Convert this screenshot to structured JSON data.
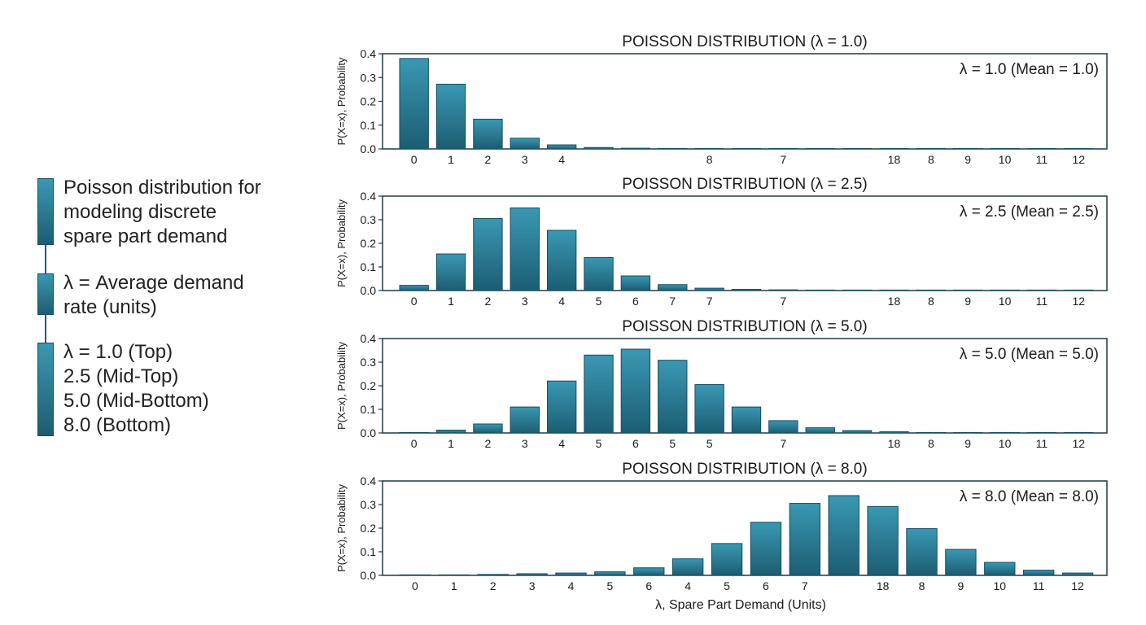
{
  "legend": {
    "items": [
      {
        "lines": [
          "Poisson distribution for",
          "modeling discrete",
          "spare part demand"
        ]
      },
      {
        "lines": [
          "λ = Average demand",
          "rate (units)"
        ]
      },
      {
        "lines": [
          "λ = 1.0 (Top)",
          "2.5 (Mid-Top)",
          "5.0 (Mid-Bottom)",
          "8.0 (Bottom)"
        ]
      }
    ]
  },
  "colors": {
    "bar_top": "#3a98b3",
    "bar_bottom": "#1c5d72",
    "bar_stroke": "#174d60",
    "axis": "#1f3a46"
  },
  "chart_data": [
    {
      "type": "bar",
      "title": "POISSON DISTRIBUTION (λ = 1.0)",
      "ylabel": "P(X=x), Probability",
      "xlabel": "",
      "annotation": "λ = 1.0 (Mean = 1.0)",
      "ylim": [
        0,
        0.4
      ],
      "yticks": [
        "0.0",
        "0.1",
        "0.2",
        "0.3",
        "0.4"
      ],
      "categories": [
        "0",
        "1",
        "2",
        "3",
        "4",
        "",
        "",
        "",
        "8",
        "",
        "7",
        "",
        "",
        "18",
        "8",
        "9",
        "10",
        "11",
        "12"
      ],
      "values": [
        0.38,
        0.272,
        0.125,
        0.045,
        0.017,
        0.006,
        0.003,
        0.002,
        0.0015,
        0.001,
        0.0008,
        0.0006,
        0.0005,
        0.0004,
        0.0003,
        0.0002,
        0.0002,
        0.0001,
        0.0001
      ],
      "grid": false
    },
    {
      "type": "bar",
      "title": "POISSON DISTRIBUTION (λ = 2.5)",
      "ylabel": "P(X=x), Probability",
      "xlabel": "",
      "annotation": "λ = 2.5 (Mean = 2.5)",
      "ylim": [
        0,
        0.4
      ],
      "yticks": [
        "0.0",
        "0.1",
        "0.2",
        "0.3",
        "0.4"
      ],
      "categories": [
        "0",
        "1",
        "2",
        "3",
        "4",
        "5",
        "6",
        "7",
        "7",
        "",
        "7",
        "",
        "",
        "18",
        "8",
        "9",
        "10",
        "11",
        "12"
      ],
      "values": [
        0.022,
        0.155,
        0.305,
        0.35,
        0.255,
        0.14,
        0.062,
        0.025,
        0.01,
        0.005,
        0.003,
        0.002,
        0.001,
        0.0008,
        0.0006,
        0.0005,
        0.0004,
        0.0003,
        0.0002
      ],
      "grid": false
    },
    {
      "type": "bar",
      "title": "POISSON DISTRIBUTION (λ = 5.0)",
      "ylabel": "P(X=x), Probability",
      "xlabel": "",
      "annotation": "λ = 5.0 (Mean = 5.0)",
      "ylim": [
        0,
        0.4
      ],
      "yticks": [
        "0.0",
        "0.1",
        "0.2",
        "0.3",
        "0.4"
      ],
      "categories": [
        "0",
        "1",
        "2",
        "3",
        "4",
        "5",
        "6",
        "5",
        "5",
        "",
        "7",
        "",
        "",
        "18",
        "8",
        "9",
        "10",
        "11",
        "12"
      ],
      "values": [
        0.0,
        0.012,
        0.038,
        0.11,
        0.22,
        0.33,
        0.355,
        0.308,
        0.205,
        0.11,
        0.052,
        0.022,
        0.01,
        0.005,
        0.002,
        0.001,
        0.0006,
        0.0004,
        0.0002
      ],
      "grid": false
    },
    {
      "type": "bar",
      "title": "POISSON DISTRIBUTION (λ = 8.0)",
      "ylabel": "P(X=x), Probability",
      "xlabel": "λ, Spare Part Demand (Units)",
      "annotation": "λ = 8.0 (Mean = 8.0)",
      "ylim": [
        0,
        0.4
      ],
      "yticks": [
        "0.0",
        "0.1",
        "0.2",
        "0.3",
        "0.4"
      ],
      "categories": [
        "0",
        "1",
        "2",
        "3",
        "4",
        "5",
        "6",
        "4",
        "5",
        "6",
        "7",
        "",
        "18",
        "8",
        "9",
        "10",
        "11",
        "12"
      ],
      "values": [
        0.0005,
        0.001,
        0.004,
        0.007,
        0.01,
        0.015,
        0.032,
        0.07,
        0.135,
        0.225,
        0.305,
        0.338,
        0.292,
        0.198,
        0.11,
        0.055,
        0.022,
        0.01
      ],
      "grid": false
    }
  ]
}
